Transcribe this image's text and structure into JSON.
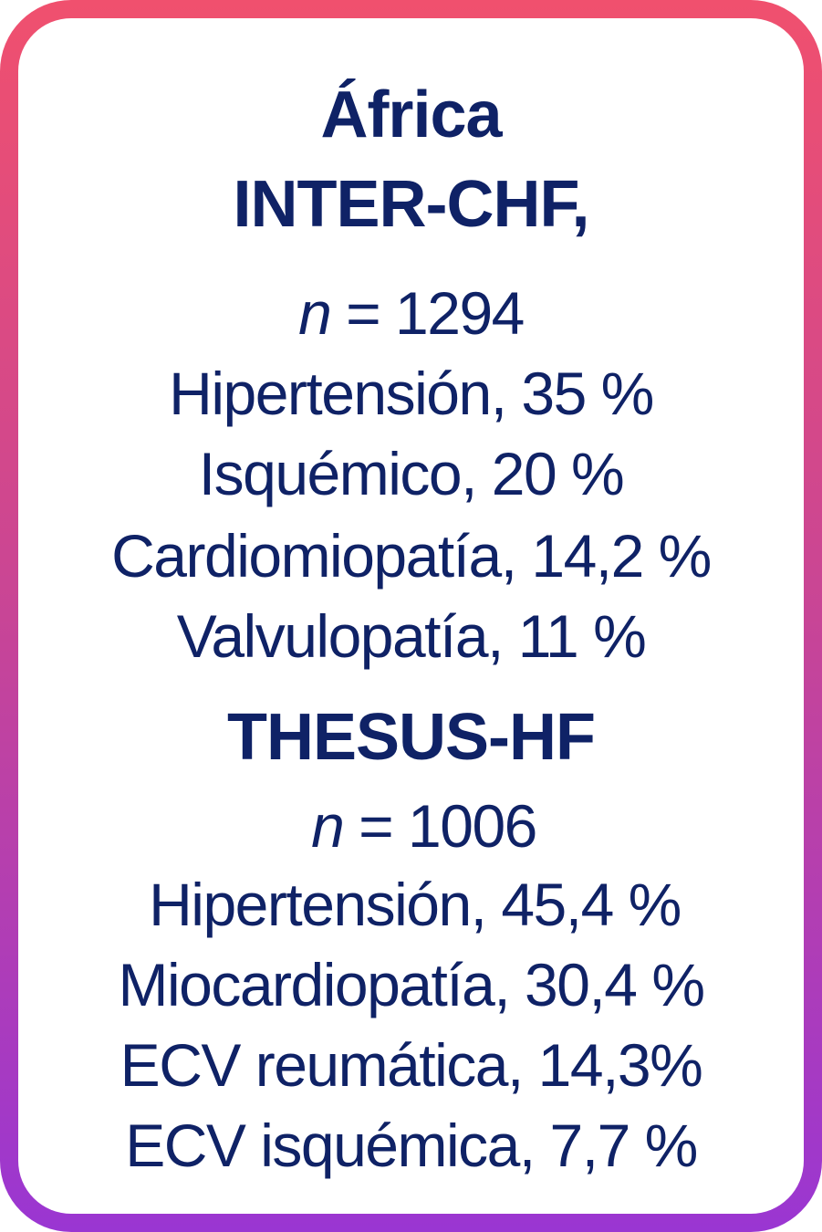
{
  "region": "África",
  "inter_chf": {
    "title": "INTER-CHF,",
    "n_label": "n",
    "n_value": "= 1294",
    "items": [
      "Hipertensión, 35 %",
      "Isquémico, 20 %",
      "Cardiomiopatía, 14,2 %",
      "Valvulopatía, 11 %"
    ]
  },
  "thesus_hf": {
    "title": "THESUS-HF",
    "n_label": "n",
    "n_value": "= 1006",
    "items": [
      "Hipertensión, 45,4 %",
      "Miocardiopatía, 30,4 %",
      "ECV reumática, 14,3%",
      "ECV isquémica, 7,7 %"
    ]
  },
  "colors": {
    "text": "#0f2266",
    "border_top": "#f0506e",
    "border_bottom": "#9a36d2"
  }
}
